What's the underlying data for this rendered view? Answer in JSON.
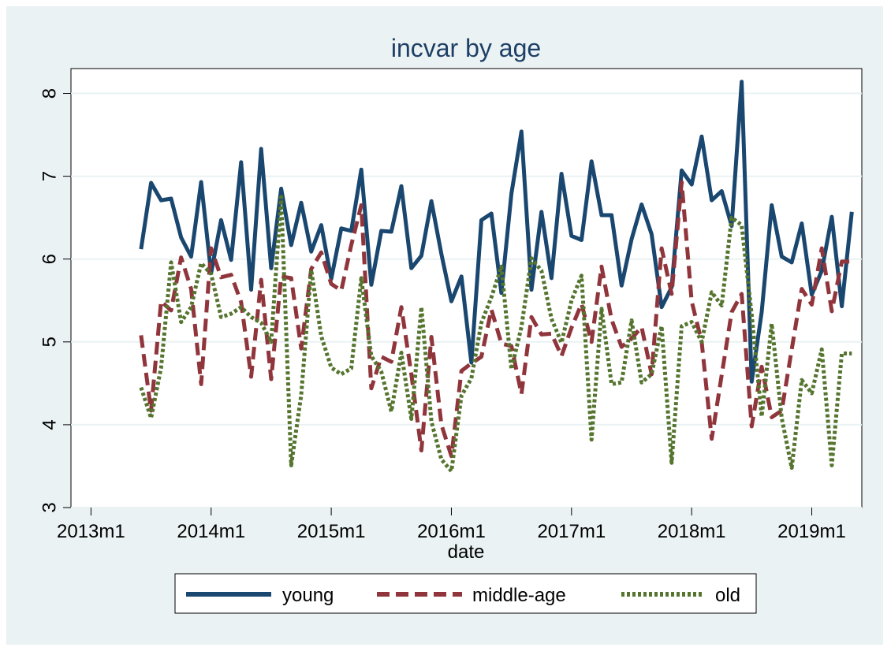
{
  "chart_data": {
    "type": "line",
    "title": "incvar by age",
    "xlabel": "date",
    "ylabel": "",
    "x_tick_labels": [
      "2013m1",
      "2014m1",
      "2015m1",
      "2016m1",
      "2017m1",
      "2018m1",
      "2019m1"
    ],
    "y_tick_labels": [
      "3",
      "4",
      "5",
      "6",
      "7",
      "8"
    ],
    "ylim": [
      3,
      8.3
    ],
    "xlim": [
      "2012-11",
      "2019-06"
    ],
    "grid": "horizontal",
    "legend_position": "bottom",
    "x": [
      "2013-06",
      "2013-07",
      "2013-08",
      "2013-09",
      "2013-10",
      "2013-11",
      "2013-12",
      "2014-01",
      "2014-02",
      "2014-03",
      "2014-04",
      "2014-05",
      "2014-06",
      "2014-07",
      "2014-08",
      "2014-09",
      "2014-10",
      "2014-11",
      "2014-12",
      "2015-01",
      "2015-02",
      "2015-03",
      "2015-04",
      "2015-05",
      "2015-06",
      "2015-07",
      "2015-08",
      "2015-09",
      "2015-10",
      "2015-11",
      "2015-12",
      "2016-01",
      "2016-02",
      "2016-03",
      "2016-04",
      "2016-05",
      "2016-06",
      "2016-07",
      "2016-08",
      "2016-09",
      "2016-10",
      "2016-11",
      "2016-12",
      "2017-01",
      "2017-02",
      "2017-03",
      "2017-04",
      "2017-05",
      "2017-06",
      "2017-07",
      "2017-08",
      "2017-09",
      "2017-10",
      "2017-11",
      "2017-12",
      "2018-01",
      "2018-02",
      "2018-03",
      "2018-04",
      "2018-05",
      "2018-06",
      "2018-07",
      "2018-08",
      "2018-09",
      "2018-10",
      "2018-11",
      "2018-12",
      "2019-01",
      "2019-02",
      "2019-03",
      "2019-04",
      "2019-05"
    ],
    "series": [
      {
        "name": "young",
        "color": "#1a476f",
        "dash": "solid",
        "values": [
          6.12,
          6.92,
          6.71,
          6.73,
          6.26,
          6.03,
          6.93,
          5.83,
          6.47,
          5.99,
          7.17,
          5.63,
          7.33,
          5.89,
          6.85,
          6.17,
          6.68,
          6.09,
          6.41,
          5.76,
          6.37,
          6.34,
          7.08,
          5.69,
          6.34,
          6.33,
          6.88,
          5.89,
          6.04,
          6.7,
          6.06,
          5.49,
          5.79,
          4.75,
          6.47,
          6.55,
          5.59,
          6.79,
          7.54,
          5.63,
          6.57,
          5.77,
          7.03,
          6.28,
          6.23,
          7.18,
          6.53,
          6.53,
          5.68,
          6.24,
          6.66,
          6.3,
          5.42,
          5.66,
          7.07,
          6.9,
          7.48,
          6.71,
          6.82,
          6.4,
          8.14,
          4.52,
          5.36,
          6.65,
          6.03,
          5.96,
          6.43,
          5.57,
          5.86,
          6.51,
          5.43,
          6.57
        ]
      },
      {
        "name": "middle-age",
        "color": "#90353b",
        "dash": "dashed",
        "values": [
          5.08,
          4.17,
          5.49,
          5.38,
          6.02,
          5.64,
          4.49,
          6.13,
          5.78,
          5.81,
          5.48,
          4.58,
          5.75,
          4.55,
          5.79,
          5.77,
          4.92,
          5.88,
          6.08,
          5.7,
          5.62,
          6.17,
          6.65,
          4.44,
          4.82,
          4.76,
          5.42,
          4.61,
          3.69,
          5.06,
          4.0,
          3.62,
          4.65,
          4.74,
          4.82,
          5.39,
          4.98,
          4.95,
          4.37,
          5.3,
          5.09,
          5.1,
          4.83,
          5.17,
          5.46,
          5.0,
          5.91,
          5.27,
          4.94,
          5.04,
          5.18,
          4.61,
          6.13,
          5.58,
          6.93,
          5.49,
          5.0,
          3.83,
          4.6,
          5.36,
          5.58,
          3.98,
          4.7,
          4.09,
          4.17,
          4.91,
          5.64,
          5.45,
          6.13,
          5.37,
          5.97,
          5.97
        ]
      },
      {
        "name": "old",
        "color": "#55752f",
        "dash": "dotted",
        "values": [
          4.45,
          4.08,
          4.69,
          5.96,
          5.24,
          5.42,
          5.95,
          5.82,
          5.3,
          5.34,
          5.42,
          5.3,
          5.23,
          5.0,
          6.75,
          3.51,
          4.36,
          5.87,
          5.07,
          4.69,
          4.61,
          4.68,
          5.77,
          4.83,
          4.64,
          4.16,
          4.87,
          4.07,
          5.42,
          4.04,
          3.58,
          3.44,
          4.35,
          4.56,
          5.23,
          5.54,
          5.91,
          4.67,
          5.18,
          6.01,
          5.86,
          5.28,
          4.99,
          5.5,
          5.8,
          3.82,
          5.4,
          4.49,
          4.51,
          5.26,
          4.51,
          4.61,
          5.19,
          3.54,
          5.19,
          5.24,
          5.0,
          5.6,
          5.44,
          6.5,
          6.41,
          5.33,
          4.1,
          5.22,
          4.08,
          3.48,
          4.54,
          4.38,
          4.91,
          3.51,
          4.86,
          4.86
        ]
      }
    ]
  }
}
